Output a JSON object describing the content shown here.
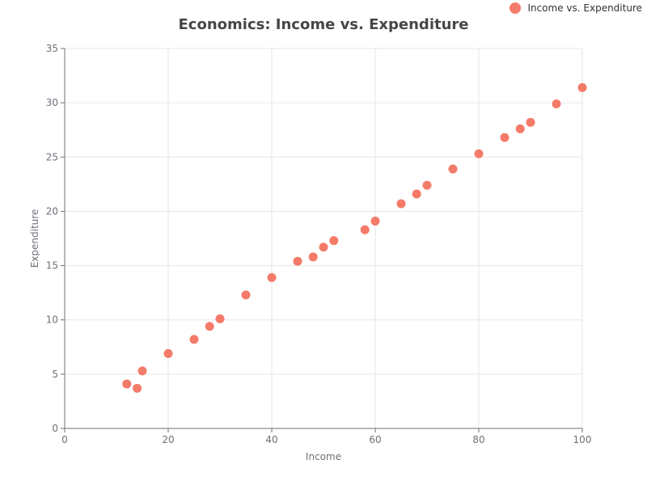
{
  "chart_data": {
    "type": "scatter",
    "title": "Economics: Income vs. Expenditure",
    "xlabel": "Income",
    "ylabel": "Expenditure",
    "xlim": [
      0,
      100
    ],
    "ylim": [
      0,
      35
    ],
    "xticks": [
      0,
      20,
      40,
      60,
      80,
      100
    ],
    "yticks": [
      0,
      5,
      10,
      15,
      20,
      25,
      30,
      35
    ],
    "grid": true,
    "legend_position": "top-right",
    "series": [
      {
        "name": "Income vs. Expenditure",
        "color": "#f47b69",
        "points": [
          [
            12,
            4.1
          ],
          [
            14,
            3.7
          ],
          [
            15,
            5.3
          ],
          [
            20,
            6.9
          ],
          [
            25,
            8.2
          ],
          [
            28,
            9.4
          ],
          [
            30,
            10.1
          ],
          [
            35,
            12.3
          ],
          [
            40,
            13.9
          ],
          [
            45,
            15.4
          ],
          [
            48,
            15.8
          ],
          [
            50,
            16.7
          ],
          [
            52,
            17.3
          ],
          [
            58,
            18.3
          ],
          [
            60,
            19.1
          ],
          [
            65,
            20.7
          ],
          [
            68,
            21.6
          ],
          [
            70,
            22.4
          ],
          [
            75,
            23.9
          ],
          [
            80,
            25.3
          ],
          [
            85,
            26.8
          ],
          [
            88,
            27.6
          ],
          [
            90,
            28.2
          ],
          [
            95,
            29.9
          ],
          [
            100,
            31.4
          ]
        ]
      }
    ]
  }
}
